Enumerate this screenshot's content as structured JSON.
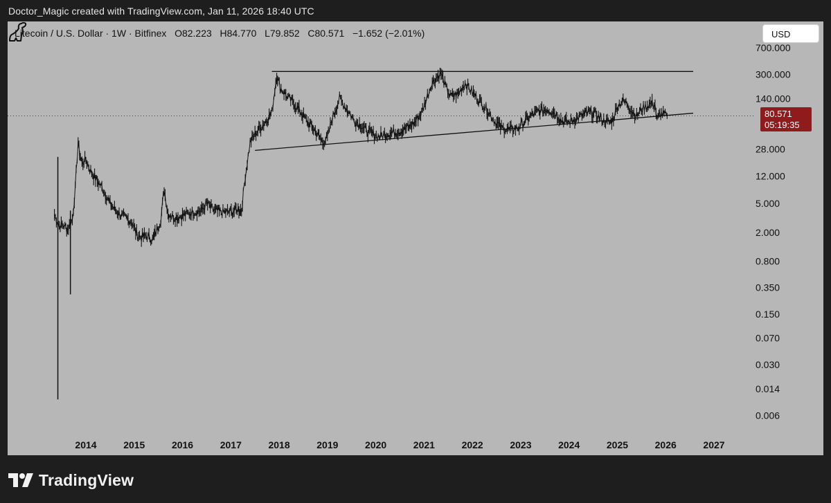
{
  "attribution": "Doctor_Magic created with TradingView.com, Jan 11, 2026 18:40 UTC",
  "header": {
    "symbol": "Litecoin / U.S. Dollar · 1W · Bitfinex",
    "open": "O82.223",
    "high": "H84.770",
    "low": "L79.852",
    "close": "C80.571",
    "change": "−1.652 (−2.01%)"
  },
  "currency_button": "USD",
  "price_tag": {
    "price": "80.571",
    "countdown": "05:19:35"
  },
  "brand": "TradingView",
  "colors": {
    "background": "#1e1e1f",
    "plot": "#b7b7b7",
    "price_tag": "#8f1b1d",
    "price_line": "#8f1b1d",
    "candles": "#111111"
  },
  "chart_data": {
    "type": "line",
    "title": "Litecoin / U.S. Dollar · 1W · Bitfinex",
    "xlabel": "",
    "ylabel": "",
    "y_scale": "log",
    "ylim": [
      0.004,
      800
    ],
    "y_ticks": [
      {
        "value": 700,
        "label": "700.000"
      },
      {
        "value": 300,
        "label": "300.000"
      },
      {
        "value": 140,
        "label": "140.000"
      },
      {
        "value": 28,
        "label": "28.000"
      },
      {
        "value": 12,
        "label": "12.000"
      },
      {
        "value": 5,
        "label": "5.000"
      },
      {
        "value": 2,
        "label": "2.000"
      },
      {
        "value": 0.8,
        "label": "0.800"
      },
      {
        "value": 0.35,
        "label": "0.350"
      },
      {
        "value": 0.15,
        "label": "0.150"
      },
      {
        "value": 0.07,
        "label": "0.070"
      },
      {
        "value": 0.03,
        "label": "0.030"
      },
      {
        "value": 0.014,
        "label": "0.014"
      },
      {
        "value": 0.006,
        "label": "0.006"
      }
    ],
    "x_range": [
      2013.0,
      2027.5
    ],
    "x_ticks": [
      {
        "value": 2014,
        "label": "2014"
      },
      {
        "value": 2015,
        "label": "2015"
      },
      {
        "value": 2016,
        "label": "2016"
      },
      {
        "value": 2017,
        "label": "2017"
      },
      {
        "value": 2018,
        "label": "2018"
      },
      {
        "value": 2019,
        "label": "2019"
      },
      {
        "value": 2020,
        "label": "2020"
      },
      {
        "value": 2021,
        "label": "2021"
      },
      {
        "value": 2022,
        "label": "2022"
      },
      {
        "value": 2023,
        "label": "2023"
      },
      {
        "value": 2024,
        "label": "2024"
      },
      {
        "value": 2025,
        "label": "2025"
      },
      {
        "value": 2026,
        "label": "2026"
      },
      {
        "value": 2027,
        "label": "2027"
      }
    ],
    "last_price": 80.571,
    "wicks": [
      {
        "x": 2013.42,
        "high": 22,
        "low": 0.01
      },
      {
        "x": 2013.68,
        "high": 4,
        "low": 0.28
      }
    ],
    "series": [
      {
        "x": [
          2013.35,
          2013.45,
          2013.55,
          2013.62,
          2013.72,
          2013.78,
          2013.84,
          2013.87,
          2013.92,
          2014.0,
          2014.1,
          2014.2,
          2014.35,
          2014.5,
          2014.65,
          2014.8,
          2014.95,
          2015.05,
          2015.15,
          2015.25,
          2015.38,
          2015.45,
          2015.55,
          2015.62,
          2015.7,
          2015.85,
          2016.0,
          2016.2,
          2016.4,
          2016.5,
          2016.65,
          2016.8,
          2016.95,
          2017.05,
          2017.15,
          2017.22,
          2017.3,
          2017.4,
          2017.5,
          2017.6,
          2017.7,
          2017.85,
          2017.95,
          2018.02,
          2018.1,
          2018.2,
          2018.3,
          2018.45,
          2018.6,
          2018.75,
          2018.9,
          2019.0,
          2019.1,
          2019.25,
          2019.45,
          2019.55,
          2019.7,
          2019.8,
          2019.95,
          2020.05,
          2020.2,
          2020.35,
          2020.5,
          2020.65,
          2020.8,
          2020.95,
          2021.05,
          2021.15,
          2021.25,
          2021.35,
          2021.45,
          2021.55,
          2021.7,
          2021.85,
          2022.0,
          2022.15,
          2022.3,
          2022.45,
          2022.6,
          2022.8,
          2022.95,
          2023.1,
          2023.25,
          2023.4,
          2023.55,
          2023.7,
          2023.85,
          2024.0,
          2024.1,
          2024.25,
          2024.4,
          2024.55,
          2024.7,
          2024.85,
          2024.92,
          2025.0,
          2025.1,
          2025.2,
          2025.3,
          2025.4,
          2025.5,
          2025.6,
          2025.7,
          2025.78,
          2025.82,
          2025.88,
          2025.95,
          2026.03
        ],
        "values": [
          3.5,
          2.5,
          2.5,
          2.2,
          3,
          8,
          35,
          25,
          18,
          20,
          14,
          11,
          8,
          5,
          3.8,
          3.2,
          2.8,
          1.9,
          1.7,
          1.8,
          1.6,
          2,
          3,
          8,
          3.6,
          3.2,
          3.4,
          3.8,
          4.0,
          5,
          4,
          3.8,
          3.8,
          3.9,
          4.2,
          4,
          12,
          35,
          45,
          55,
          65,
          90,
          300,
          200,
          170,
          140,
          120,
          90,
          65,
          50,
          35,
          40,
          75,
          140,
          90,
          70,
          60,
          50,
          45,
          42,
          45,
          48,
          50,
          55,
          65,
          90,
          140,
          220,
          270,
          310,
          200,
          150,
          160,
          230,
          170,
          130,
          100,
          70,
          55,
          52,
          55,
          70,
          85,
          95,
          100,
          90,
          70,
          66,
          72,
          80,
          90,
          85,
          70,
          65,
          75,
          110,
          130,
          120,
          95,
          80,
          100,
          110,
          120,
          115,
          70,
          85,
          85,
          80.571
        ]
      }
    ],
    "trendlines": [
      {
        "x": [
          2017.5,
          2026.57
        ],
        "y": [
          27,
          88
        ]
      },
      {
        "x": [
          2017.85,
          2026.57
        ],
        "y": [
          330,
          330
        ]
      }
    ]
  }
}
